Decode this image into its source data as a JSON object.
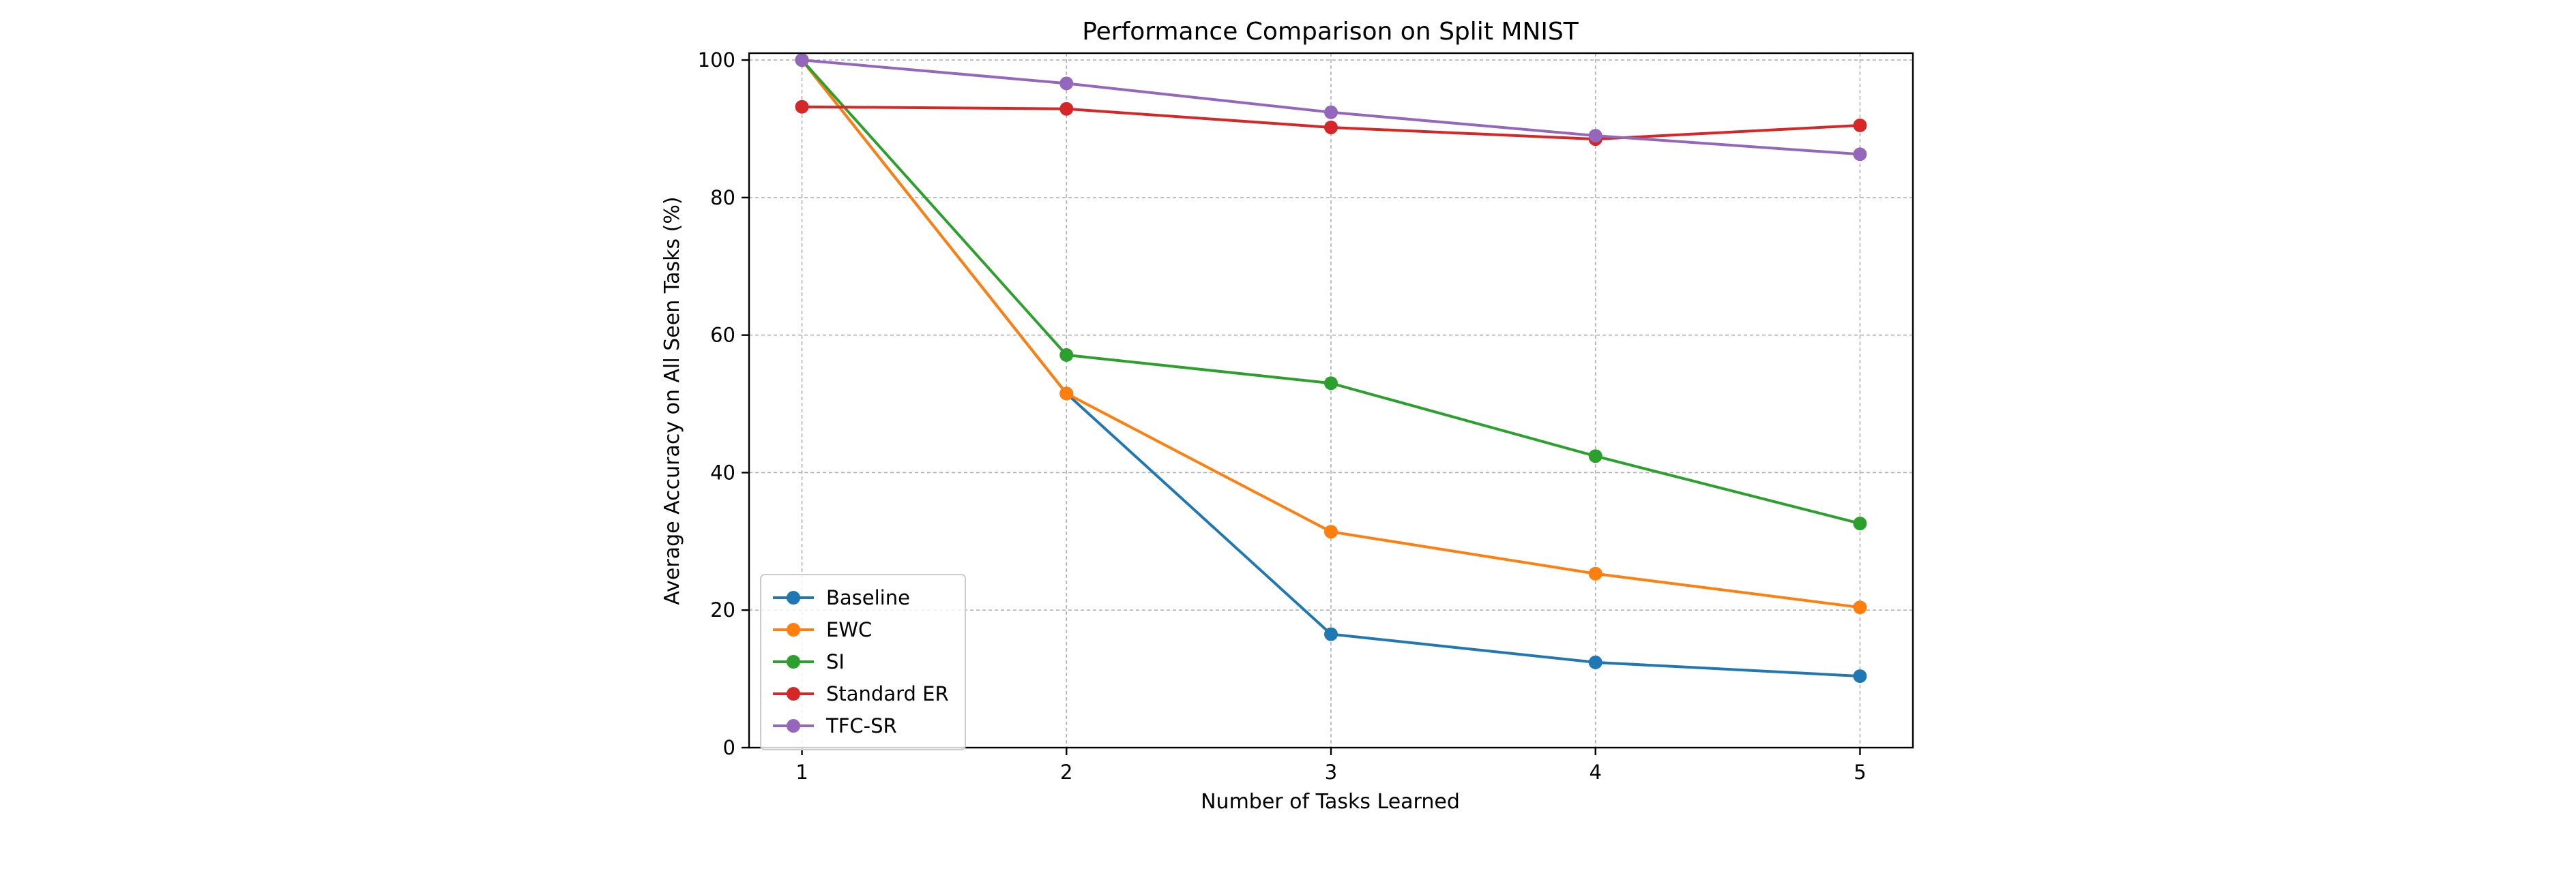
{
  "chart_data": {
    "type": "line",
    "title": "Performance Comparison on Split MNIST",
    "xlabel": "Number of Tasks Learned",
    "ylabel": "Average Accuracy on All Seen Tasks (%)",
    "x": [
      1,
      2,
      3,
      4,
      5
    ],
    "xticks": [
      "1",
      "2",
      "3",
      "4",
      "5"
    ],
    "xlim": [
      0.8,
      5.2
    ],
    "ylim": [
      0,
      101
    ],
    "yticks": [
      "0",
      "20",
      "40",
      "60",
      "80",
      "100"
    ],
    "grid": true,
    "legend_position": "lower-left",
    "series": [
      {
        "name": "Baseline",
        "color": "#1f77b4",
        "values": [
          100,
          51.5,
          16.5,
          12.4,
          10.4
        ]
      },
      {
        "name": "EWC",
        "color": "#ff7f0e",
        "values": [
          100,
          51.5,
          31.4,
          25.3,
          20.4
        ]
      },
      {
        "name": "SI",
        "color": "#2ca02c",
        "values": [
          100,
          57.1,
          53.0,
          42.4,
          32.6
        ]
      },
      {
        "name": "Standard ER",
        "color": "#d62728",
        "values": [
          93.2,
          92.9,
          90.2,
          88.5,
          90.5
        ]
      },
      {
        "name": "TFC-SR",
        "color": "#9467bd",
        "values": [
          100,
          96.6,
          92.4,
          89.0,
          86.3
        ]
      }
    ]
  }
}
